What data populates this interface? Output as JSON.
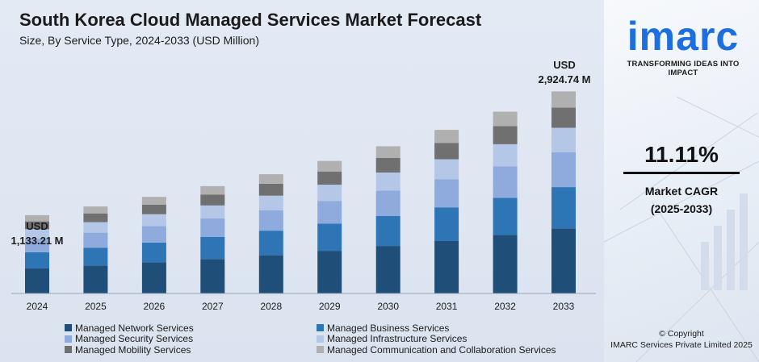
{
  "title": "South Korea Cloud Managed Services Market Forecast",
  "subtitle": "Size, By Service Type, 2024-2033 (USD Million)",
  "annotations": {
    "first": {
      "unit": "USD",
      "value": "1,133.21 M"
    },
    "last": {
      "unit": "USD",
      "value": "2,924.74 M"
    }
  },
  "brand": {
    "logo_text": "imarc",
    "tagline": "TRANSFORMING IDEAS INTO IMPACT",
    "logo_color": "#1d6fe0"
  },
  "cagr": {
    "value": "11.11%",
    "label": "Market CAGR",
    "period": "(2025-2033)"
  },
  "copyright": {
    "line1": "© Copyright",
    "line2": "IMARC Services Private Limited 2025"
  },
  "chart_data": {
    "type": "bar",
    "stacked": true,
    "categories": [
      "2024",
      "2025",
      "2026",
      "2027",
      "2028",
      "2029",
      "2030",
      "2031",
      "2032",
      "2033"
    ],
    "totals": [
      1133.21,
      1259,
      1399,
      1554,
      1727,
      1919,
      2132,
      2369,
      2632,
      2924.74
    ],
    "series": [
      {
        "name": "Managed Network Services",
        "color": "#1f4e79",
        "values": [
          365,
          405,
          450,
          500,
          556,
          618,
          687,
          763,
          848,
          942
        ]
      },
      {
        "name": "Managed Business Services",
        "color": "#2e75b6",
        "values": [
          232,
          258,
          286,
          318,
          353,
          392,
          436,
          484,
          538,
          598
        ]
      },
      {
        "name": "Managed Security Services",
        "color": "#8faadc",
        "values": [
          195,
          217,
          241,
          268,
          297,
          330,
          367,
          408,
          453,
          503
        ]
      },
      {
        "name": "Managed Infrastructure Services",
        "color": "#b4c7e7",
        "values": [
          138,
          153,
          170,
          189,
          210,
          234,
          260,
          289,
          321,
          356
        ]
      },
      {
        "name": "Managed Mobility Services",
        "color": "#707070",
        "values": [
          113,
          126,
          140,
          155,
          173,
          192,
          213,
          237,
          263,
          292
        ]
      },
      {
        "name": "Managed Communication and Collaboration Services",
        "color": "#b0b0b0",
        "values": [
          90,
          100,
          112,
          124,
          138,
          153,
          169,
          188,
          209,
          234
        ]
      }
    ],
    "ylim": [
      0,
      3000
    ],
    "grid": false,
    "legend_position": "bottom"
  }
}
